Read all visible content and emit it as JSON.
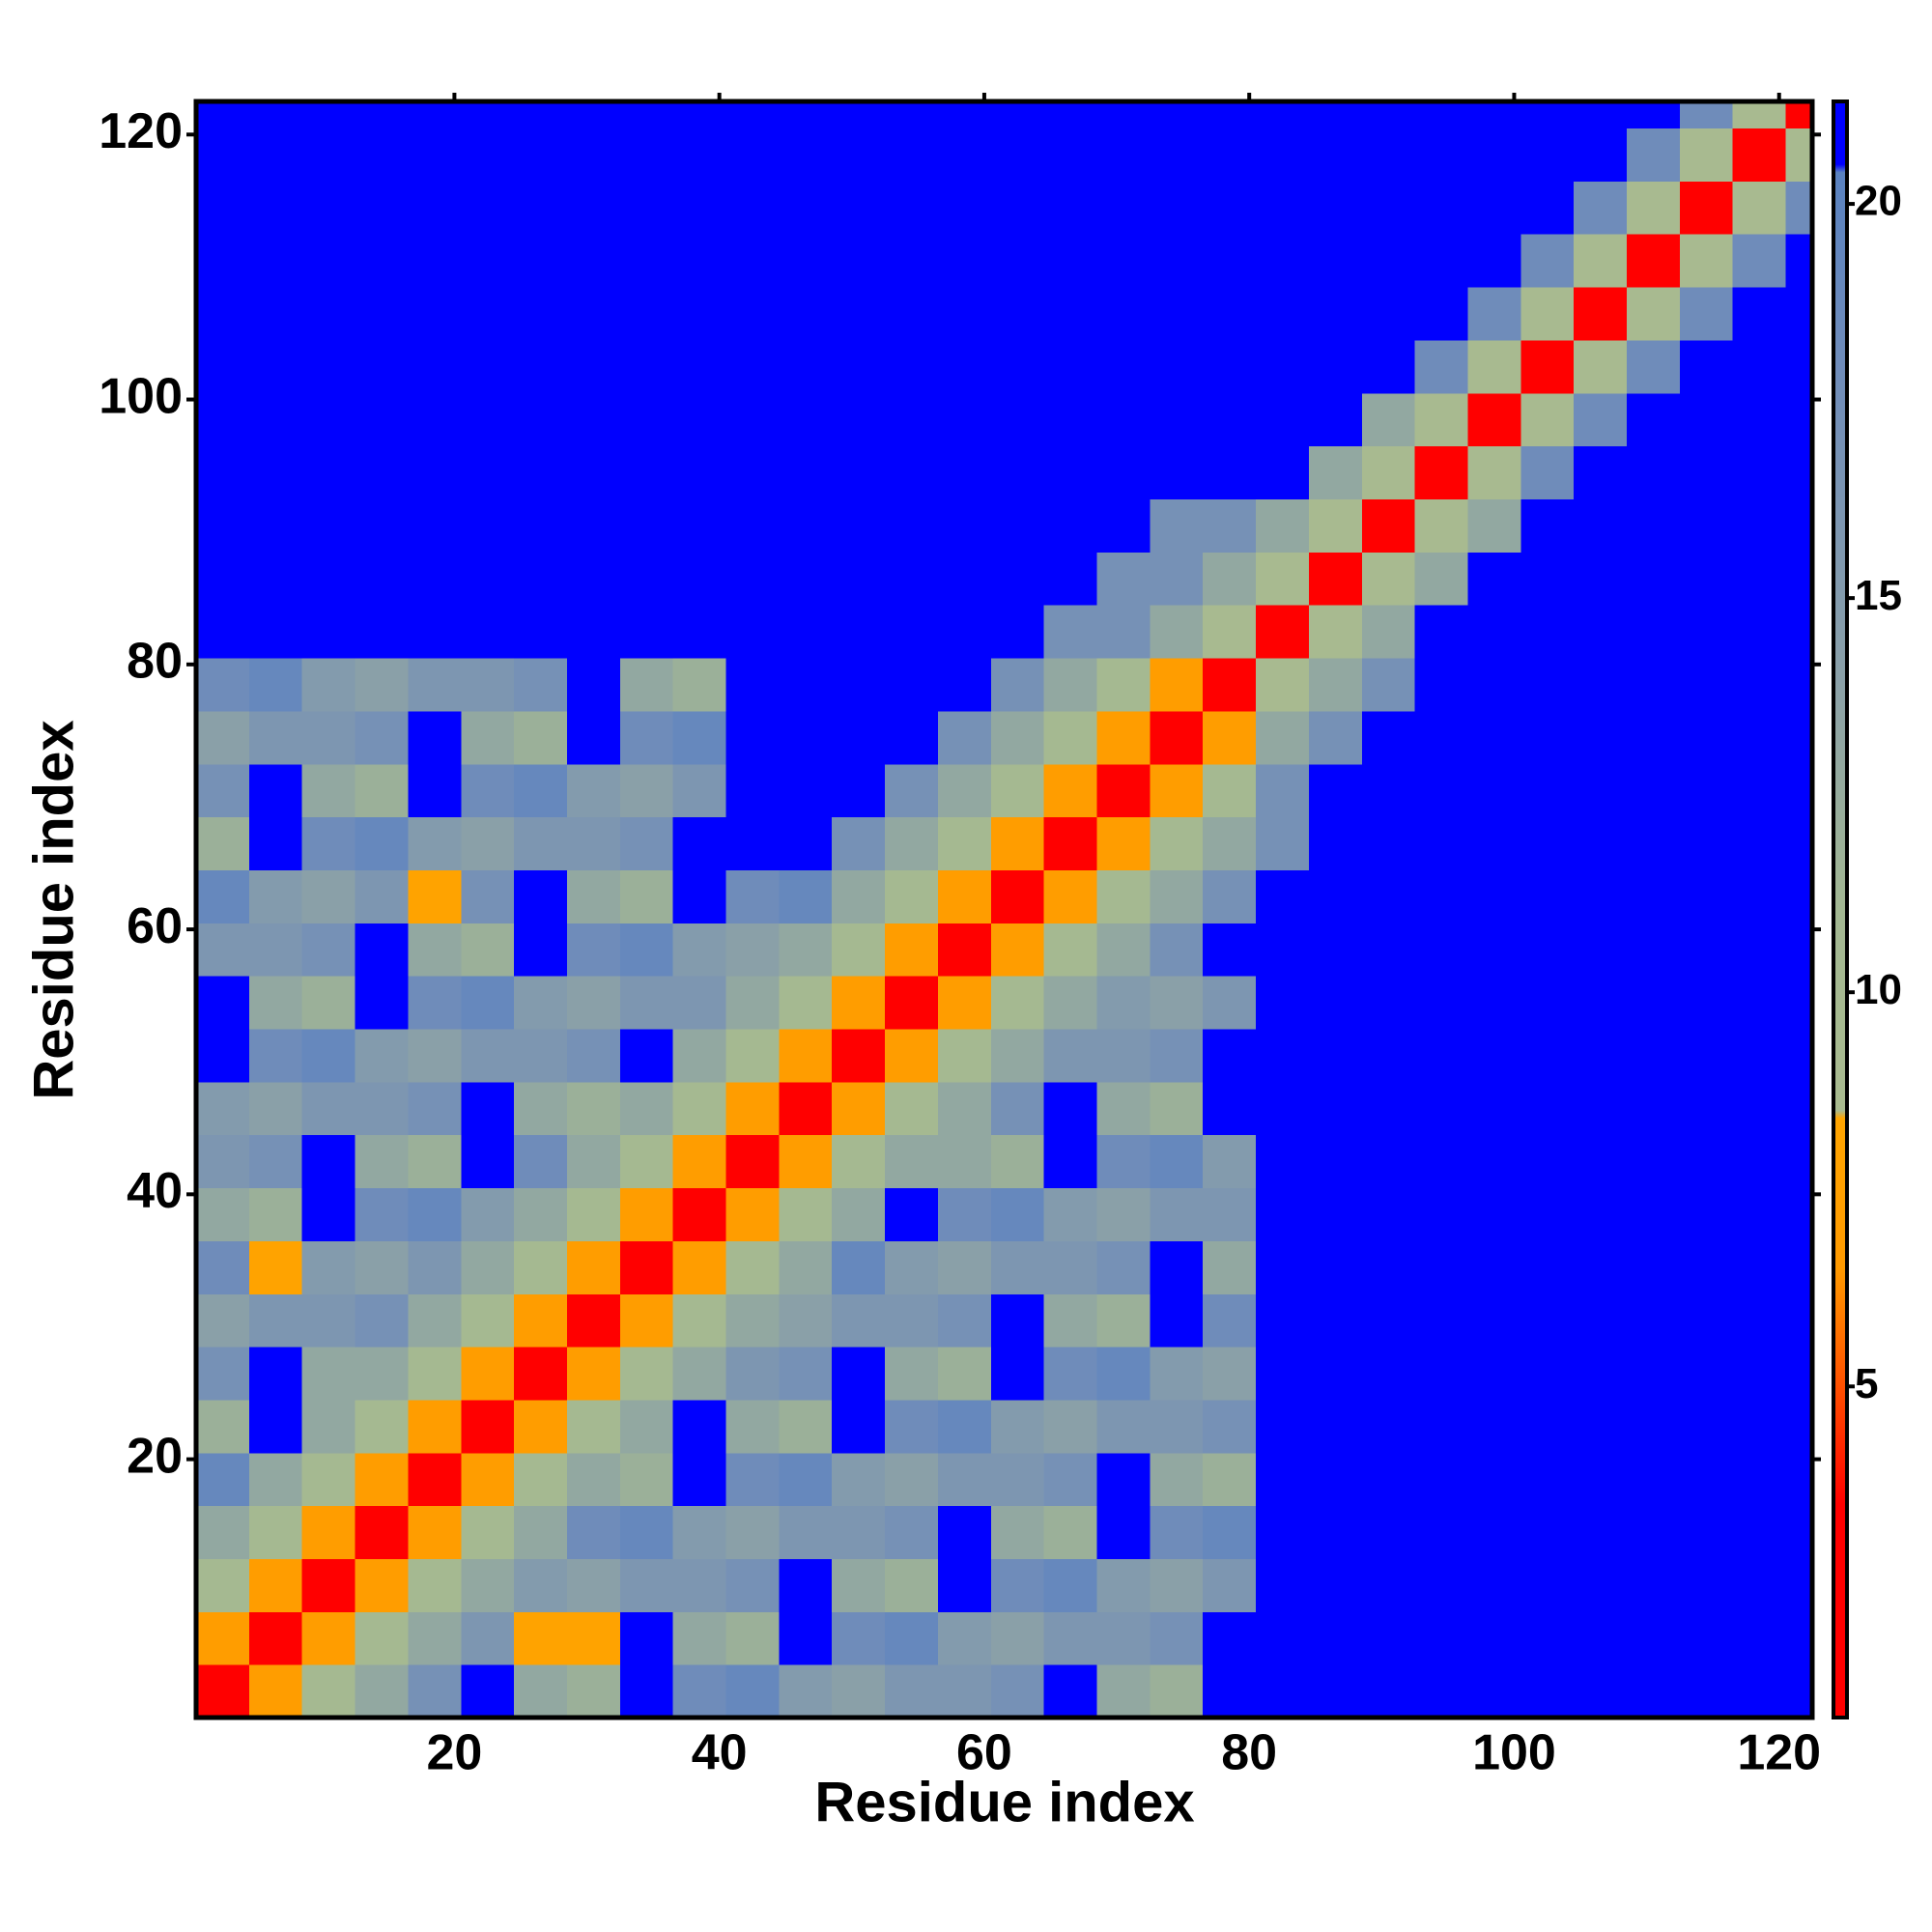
{
  "chart_data": {
    "type": "heatmap",
    "xlabel": "Residue index",
    "ylabel": "Residue index",
    "xlim": [
      0.5,
      122.5
    ],
    "ylim": [
      0.5,
      122.5
    ],
    "xticks": [
      20,
      40,
      60,
      80,
      100,
      120
    ],
    "yticks": [
      20,
      40,
      60,
      80,
      100,
      120
    ],
    "xbins": [
      0.5,
      4.5,
      8.5,
      12.5,
      16.5,
      20.5,
      24.5,
      28.5,
      32.5,
      36.5,
      40.5,
      44.5,
      48.5,
      52.5,
      56.5,
      60.5,
      64.5,
      68.5,
      72.5,
      76.5,
      80.5,
      84.5,
      88.5,
      92.5,
      96.5,
      100.5,
      104.5,
      108.5,
      112.5,
      116.5,
      120.5,
      122.5
    ],
    "ybins": [
      0.5,
      4.5,
      8.5,
      12.5,
      16.5,
      20.5,
      24.5,
      28.5,
      32.5,
      36.5,
      40.5,
      44.5,
      48.5,
      52.5,
      56.5,
      60.5,
      64.5,
      68.5,
      72.5,
      76.5,
      80.5,
      84.5,
      88.5,
      92.5,
      96.5,
      100.5,
      104.5,
      108.5,
      112.5,
      116.5,
      120.5,
      122.5
    ],
    "zlim": [
      0.8,
      21.3
    ],
    "zticks": [
      5,
      10,
      15,
      20
    ],
    "colorscale": [
      [
        0.8,
        "#ff0000"
      ],
      [
        3.5,
        "#ff0000"
      ],
      [
        5,
        "#ff5000"
      ],
      [
        6.5,
        "#ff9a00"
      ],
      [
        8.4,
        "#ffa500"
      ],
      [
        8.5,
        "#a9bb8f"
      ],
      [
        11,
        "#a3b892"
      ],
      [
        14,
        "#8aa0a8"
      ],
      [
        18,
        "#6f8cba"
      ],
      [
        20.4,
        "#5a82c0"
      ],
      [
        20.5,
        "#0000ff"
      ],
      [
        21.3,
        "#0000ff"
      ]
    ],
    "z": [
      [
        3,
        7,
        10,
        13,
        17,
        22,
        13,
        12,
        22,
        18,
        19,
        15,
        14,
        16,
        16,
        17,
        22,
        13,
        12,
        22,
        22,
        22,
        22,
        22,
        22,
        22,
        22,
        22,
        22,
        22,
        22
      ],
      [
        7,
        3,
        7,
        10,
        13,
        16,
        8,
        8,
        22,
        13,
        12,
        22,
        18,
        19,
        15,
        14,
        16,
        16,
        17,
        22,
        22,
        22,
        22,
        22,
        22,
        22,
        22,
        22,
        22,
        22,
        22
      ],
      [
        10,
        7,
        3,
        7,
        10,
        13,
        15,
        14,
        16,
        16,
        17,
        22,
        13,
        12,
        22,
        18,
        19,
        15,
        14,
        16,
        22,
        22,
        22,
        22,
        22,
        22,
        22,
        22,
        22,
        22,
        22
      ],
      [
        13,
        10,
        7,
        3,
        7,
        10,
        13,
        18,
        19,
        15,
        14,
        16,
        16,
        17,
        22,
        13,
        12,
        22,
        18,
        19,
        22,
        22,
        22,
        22,
        22,
        22,
        22,
        22,
        22,
        22,
        22
      ],
      [
        19,
        13,
        10,
        7,
        3,
        7,
        10,
        13,
        12,
        22,
        18,
        19,
        15,
        14,
        16,
        16,
        17,
        22,
        13,
        12,
        22,
        22,
        22,
        22,
        22,
        22,
        22,
        22,
        22,
        22,
        22
      ],
      [
        12,
        22,
        13,
        10,
        7,
        3,
        7,
        10,
        13,
        22,
        13,
        12,
        22,
        18,
        19,
        15,
        14,
        16,
        16,
        17,
        22,
        22,
        22,
        22,
        22,
        22,
        22,
        22,
        22,
        22,
        22
      ],
      [
        17,
        22,
        13,
        13,
        10,
        7,
        3,
        7,
        10,
        13,
        16,
        17,
        22,
        13,
        12,
        22,
        18,
        19,
        15,
        14,
        22,
        22,
        22,
        22,
        22,
        22,
        22,
        22,
        22,
        22,
        22
      ],
      [
        14,
        16,
        16,
        17,
        13,
        10,
        7,
        3,
        7,
        10,
        13,
        14,
        16,
        16,
        17,
        22,
        13,
        12,
        22,
        18,
        22,
        22,
        22,
        22,
        22,
        22,
        22,
        22,
        22,
        22,
        22
      ],
      [
        18,
        8,
        15,
        14,
        16,
        13,
        10,
        7,
        3,
        7,
        10,
        13,
        19,
        15,
        14,
        16,
        16,
        17,
        22,
        13,
        22,
        22,
        22,
        22,
        22,
        22,
        22,
        22,
        22,
        22,
        22
      ],
      [
        13,
        12,
        22,
        18,
        19,
        15,
        13,
        10,
        7,
        3,
        7,
        10,
        13,
        22,
        18,
        19,
        15,
        14,
        16,
        16,
        22,
        22,
        22,
        22,
        22,
        22,
        22,
        22,
        22,
        22,
        22
      ],
      [
        16,
        17,
        22,
        13,
        12,
        22,
        18,
        13,
        10,
        7,
        3,
        7,
        10,
        13,
        13,
        12,
        22,
        18,
        19,
        15,
        22,
        22,
        22,
        22,
        22,
        22,
        22,
        22,
        22,
        22,
        22
      ],
      [
        15,
        14,
        16,
        16,
        17,
        22,
        13,
        12,
        13,
        10,
        7,
        3,
        7,
        10,
        13,
        17,
        22,
        13,
        12,
        22,
        22,
        22,
        22,
        22,
        22,
        22,
        22,
        22,
        22,
        22,
        22
      ],
      [
        22,
        18,
        19,
        15,
        14,
        16,
        16,
        17,
        22,
        13,
        10,
        7,
        3,
        7,
        10,
        13,
        16,
        16,
        17,
        22,
        22,
        22,
        22,
        22,
        22,
        22,
        22,
        22,
        22,
        22,
        22
      ],
      [
        22,
        13,
        12,
        22,
        18,
        19,
        15,
        14,
        16,
        16,
        13,
        10,
        7,
        3,
        7,
        10,
        13,
        15,
        14,
        16,
        22,
        22,
        22,
        22,
        22,
        22,
        22,
        22,
        22,
        22,
        22
      ],
      [
        16,
        16,
        17,
        22,
        13,
        12,
        22,
        18,
        19,
        15,
        14,
        13,
        10,
        7,
        3,
        7,
        10,
        13,
        17,
        22,
        22,
        22,
        22,
        22,
        22,
        22,
        22,
        22,
        22,
        22,
        22
      ],
      [
        19,
        15,
        14,
        16,
        8,
        17,
        22,
        13,
        12,
        22,
        18,
        19,
        13,
        10,
        7,
        3,
        7,
        10,
        13,
        17,
        22,
        22,
        22,
        22,
        22,
        22,
        22,
        22,
        22,
        22,
        22
      ],
      [
        12,
        22,
        18,
        19,
        15,
        14,
        16,
        16,
        17,
        22,
        22,
        22,
        17,
        13,
        10,
        7,
        3,
        7,
        10,
        13,
        17,
        22,
        22,
        22,
        22,
        22,
        22,
        22,
        22,
        22,
        22
      ],
      [
        17,
        22,
        13,
        12,
        22,
        18,
        19,
        15,
        14,
        16,
        22,
        22,
        22,
        17,
        13,
        10,
        7,
        3,
        7,
        10,
        17,
        22,
        22,
        22,
        22,
        22,
        22,
        22,
        22,
        22,
        22
      ],
      [
        14,
        16,
        16,
        17,
        22,
        13,
        12,
        22,
        18,
        19,
        22,
        22,
        22,
        22,
        17,
        13,
        10,
        7,
        3,
        7,
        13,
        17,
        22,
        22,
        22,
        22,
        22,
        22,
        22,
        22,
        22
      ],
      [
        18,
        19,
        15,
        14,
        16,
        16,
        17,
        22,
        13,
        12,
        22,
        22,
        22,
        22,
        22,
        17,
        13,
        10,
        7,
        3,
        9,
        13,
        17,
        22,
        22,
        22,
        22,
        22,
        22,
        22,
        22
      ],
      [
        22,
        22,
        22,
        22,
        22,
        22,
        22,
        22,
        22,
        22,
        22,
        22,
        22,
        22,
        22,
        22,
        17,
        17,
        13,
        9,
        3,
        9,
        13,
        22,
        22,
        22,
        22,
        22,
        22,
        22,
        22
      ],
      [
        22,
        22,
        22,
        22,
        22,
        22,
        22,
        22,
        22,
        22,
        22,
        22,
        22,
        22,
        22,
        22,
        22,
        17,
        17,
        13,
        9,
        3,
        9,
        13,
        22,
        22,
        22,
        22,
        22,
        22,
        22
      ],
      [
        22,
        22,
        22,
        22,
        22,
        22,
        22,
        22,
        22,
        22,
        22,
        22,
        22,
        22,
        22,
        22,
        22,
        22,
        17,
        17,
        13,
        9,
        3,
        9,
        13,
        22,
        22,
        22,
        22,
        22,
        22
      ],
      [
        22,
        22,
        22,
        22,
        22,
        22,
        22,
        22,
        22,
        22,
        22,
        22,
        22,
        22,
        22,
        22,
        22,
        22,
        22,
        22,
        22,
        13,
        9,
        3,
        9,
        18,
        22,
        22,
        22,
        22,
        22
      ],
      [
        22,
        22,
        22,
        22,
        22,
        22,
        22,
        22,
        22,
        22,
        22,
        22,
        22,
        22,
        22,
        22,
        22,
        22,
        22,
        22,
        22,
        22,
        13,
        9,
        3,
        9,
        18,
        22,
        22,
        22,
        22
      ],
      [
        22,
        22,
        22,
        22,
        22,
        22,
        22,
        22,
        22,
        22,
        22,
        22,
        22,
        22,
        22,
        22,
        22,
        22,
        22,
        22,
        22,
        22,
        22,
        18,
        9,
        3,
        9,
        18,
        22,
        22,
        22
      ],
      [
        22,
        22,
        22,
        22,
        22,
        22,
        22,
        22,
        22,
        22,
        22,
        22,
        22,
        22,
        22,
        22,
        22,
        22,
        22,
        22,
        22,
        22,
        22,
        22,
        18,
        9,
        3,
        9,
        18,
        22,
        22
      ],
      [
        22,
        22,
        22,
        22,
        22,
        22,
        22,
        22,
        22,
        22,
        22,
        22,
        22,
        22,
        22,
        22,
        22,
        22,
        22,
        22,
        22,
        22,
        22,
        22,
        22,
        18,
        9,
        3,
        9,
        18,
        22
      ],
      [
        22,
        22,
        22,
        22,
        22,
        22,
        22,
        22,
        22,
        22,
        22,
        22,
        22,
        22,
        22,
        22,
        22,
        22,
        22,
        22,
        22,
        22,
        22,
        22,
        22,
        22,
        18,
        9,
        3,
        9,
        18
      ],
      [
        22,
        22,
        22,
        22,
        22,
        22,
        22,
        22,
        22,
        22,
        22,
        22,
        22,
        22,
        22,
        22,
        22,
        22,
        22,
        22,
        22,
        22,
        22,
        22,
        22,
        22,
        22,
        18,
        9,
        3,
        9
      ],
      [
        22,
        22,
        22,
        22,
        22,
        22,
        22,
        22,
        22,
        22,
        22,
        22,
        22,
        22,
        22,
        22,
        22,
        22,
        22,
        22,
        22,
        22,
        22,
        22,
        22,
        22,
        22,
        22,
        18,
        9,
        3
      ]
    ]
  }
}
